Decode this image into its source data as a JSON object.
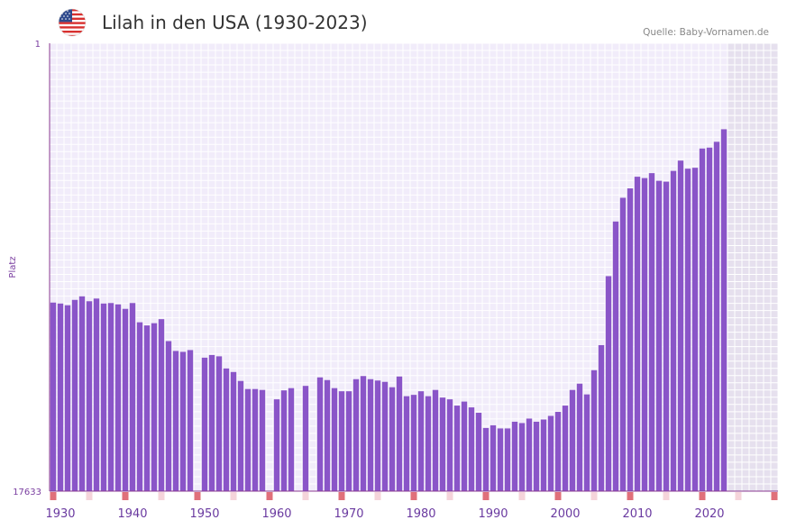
{
  "header": {
    "title": "Lilah in den USA (1930-2023)",
    "source": "Quelle: Baby-Vornamen.de"
  },
  "colors": {
    "bar": "#8a55c8",
    "plot_bg": "#f1ecfa",
    "future_bg": "#e6e0ee",
    "axis": "#8a3a90",
    "marker_strong": "#e0707a",
    "marker_light": "#f5d4da"
  },
  "chart_data": {
    "type": "bar",
    "title": "Lilah in den USA (1930-2023)",
    "xlabel": "",
    "ylabel": "Platz",
    "y_top_label": "1",
    "y_bottom_label": "17633",
    "value_note": "values = bar height as fraction of full axis (0 = rank 17633, 1 = rank 1); null = no data",
    "x_start": 1929,
    "x_end": 2029,
    "data_end_year": 2022,
    "x_ticks": [
      1930,
      1940,
      1950,
      1960,
      1970,
      1980,
      1990,
      2000,
      2010,
      2020
    ],
    "x_tick_labels": [
      "1930",
      "1940",
      "1950",
      "1960",
      "1970",
      "1980",
      "1990",
      "2000",
      "2010",
      "2020"
    ],
    "years": [
      1929,
      1930,
      1931,
      1932,
      1933,
      1934,
      1935,
      1936,
      1937,
      1938,
      1939,
      1940,
      1941,
      1942,
      1943,
      1944,
      1945,
      1946,
      1947,
      1948,
      1949,
      1950,
      1951,
      1952,
      1953,
      1954,
      1955,
      1956,
      1957,
      1958,
      1959,
      1960,
      1961,
      1962,
      1963,
      1964,
      1965,
      1966,
      1967,
      1968,
      1969,
      1970,
      1971,
      1972,
      1973,
      1974,
      1975,
      1976,
      1977,
      1978,
      1979,
      1980,
      1981,
      1982,
      1983,
      1984,
      1985,
      1986,
      1987,
      1988,
      1989,
      1990,
      1991,
      1992,
      1993,
      1994,
      1995,
      1996,
      1997,
      1998,
      1999,
      2000,
      2001,
      2002,
      2003,
      2004,
      2005,
      2006,
      2007,
      2008,
      2009,
      2010,
      2011,
      2012,
      2013,
      2014,
      2015,
      2016,
      2017,
      2018,
      2019,
      2020,
      2021,
      2022
    ],
    "values": [
      0.421,
      0.419,
      0.415,
      0.427,
      0.435,
      0.424,
      0.43,
      0.419,
      0.42,
      0.417,
      0.407,
      0.42,
      0.377,
      0.37,
      0.375,
      0.384,
      0.335,
      0.313,
      0.311,
      0.315,
      null,
      0.298,
      0.304,
      0.301,
      0.274,
      0.266,
      0.246,
      0.228,
      0.228,
      0.226,
      null,
      0.205,
      0.225,
      0.23,
      null,
      0.235,
      null,
      0.254,
      0.248,
      0.23,
      0.223,
      0.223,
      0.25,
      0.257,
      0.25,
      0.247,
      0.244,
      0.232,
      0.256,
      0.212,
      0.215,
      0.223,
      0.212,
      0.226,
      0.209,
      0.205,
      0.191,
      0.2,
      0.187,
      0.175,
      0.141,
      0.147,
      0.14,
      0.14,
      0.155,
      0.152,
      0.162,
      0.155,
      0.16,
      0.168,
      0.177,
      0.191,
      0.226,
      0.24,
      0.216,
      0.27,
      0.326,
      0.48,
      0.602,
      0.655,
      0.676,
      0.702,
      0.699,
      0.71,
      0.693,
      0.691,
      0.715,
      0.738,
      0.72,
      0.722,
      0.765,
      0.767,
      0.78,
      0.808
    ],
    "markers_strong": [
      1929,
      1939,
      1949,
      1959,
      1969,
      1979,
      1989,
      1999,
      2009,
      2019,
      2029
    ],
    "markers_light": [
      1934,
      1944,
      1954,
      1964,
      1974,
      1984,
      1994,
      2004,
      2014,
      2024
    ]
  }
}
